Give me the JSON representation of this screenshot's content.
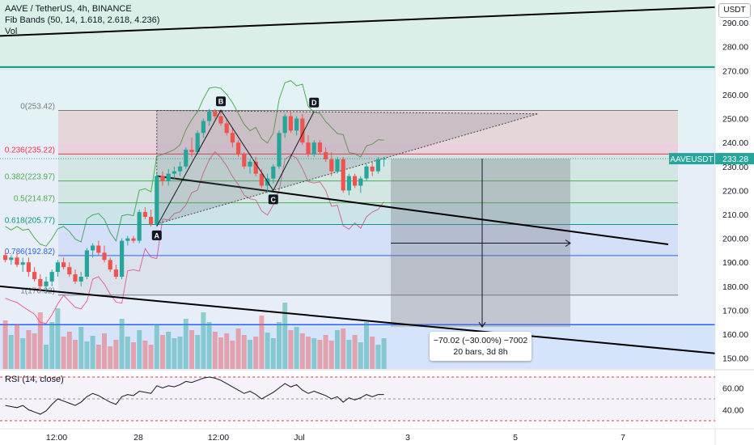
{
  "legend": {
    "symbol": "AAVE / TetherUS, 4h, BINANCE",
    "indicator": "Fib Bands (50, 14, 1.618, 2.618, 4.236)",
    "volume": "Vol"
  },
  "rsi_label": "RSI (14, close)",
  "currency_badge": "USDT",
  "measure": {
    "line1": "−70.02 (−30.00%) −7002",
    "line2": "20 bars, 3d 8h"
  },
  "colors": {
    "up": "#26a69a",
    "down": "#ef5350",
    "price_tag": "#26a69a"
  },
  "chart_data": [
    {
      "type": "candlestick",
      "title": "AAVE / TetherUS, 4h, BINANCE",
      "price_axis": {
        "ticks": [
          150,
          160,
          170,
          180,
          190,
          200,
          210,
          220,
          230,
          240,
          250,
          260,
          270,
          280,
          290
        ],
        "tick_labels": [
          "150.00",
          "160.00",
          "170.00",
          "180.00",
          "190.00",
          "200.00",
          "210.00",
          "220.00",
          "230.00",
          "240.00",
          "250.00",
          "260.00",
          "270.00",
          "280.00",
          "290.00"
        ],
        "ylim": [
          145.5,
          299.5
        ]
      },
      "time_axis": {
        "labels": [
          "12:00",
          "28",
          "12:00",
          "Jul",
          "3",
          "5",
          "7"
        ]
      },
      "last_price": {
        "symbol": "AAVEUSDT",
        "value": "233.28"
      },
      "fib_levels": [
        {
          "label": "0(253.42)",
          "value": 253.42
        },
        {
          "label": "0.236(235.22)",
          "value": 235.22
        },
        {
          "label": "0.382(223.97)",
          "value": 223.97
        },
        {
          "label": "0.5(214.87)",
          "value": 214.87
        },
        {
          "label": "0.618(205.77)",
          "value": 205.77
        },
        {
          "label": "0.786(192.82)",
          "value": 192.82
        },
        {
          "label": "1(176.32)",
          "value": 176.32
        }
      ],
      "pattern_points": [
        {
          "label": "A",
          "bar": 26,
          "price": 205.0
        },
        {
          "label": "B",
          "bar": 37,
          "price": 253.5
        },
        {
          "label": "C",
          "bar": 46,
          "price": 220.0
        },
        {
          "label": "D",
          "bar": 53,
          "price": 253.0
        }
      ],
      "candles": [
        [
          193,
          195,
          190,
          191
        ],
        [
          191,
          193,
          189,
          192
        ],
        [
          192,
          194,
          188,
          189
        ],
        [
          189,
          192,
          186,
          190
        ],
        [
          190,
          192,
          184,
          186
        ],
        [
          186,
          188,
          182,
          183
        ],
        [
          183,
          185,
          178,
          180
        ],
        [
          180,
          184,
          177,
          182
        ],
        [
          182,
          187,
          180,
          186
        ],
        [
          186,
          191,
          184,
          190
        ],
        [
          190,
          192,
          187,
          188
        ],
        [
          188,
          190,
          184,
          185
        ],
        [
          185,
          187,
          181,
          182
        ],
        [
          182,
          186,
          180,
          184
        ],
        [
          184,
          196,
          183,
          195
        ],
        [
          195,
          198,
          192,
          197
        ],
        [
          197,
          199,
          193,
          194
        ],
        [
          194,
          197,
          190,
          191
        ],
        [
          191,
          192,
          186,
          187
        ],
        [
          187,
          189,
          183,
          184
        ],
        [
          184,
          200,
          183,
          199
        ],
        [
          199,
          201,
          197,
          200
        ],
        [
          200,
          201,
          198,
          199
        ],
        [
          199,
          212,
          198,
          211
        ],
        [
          211,
          213,
          208,
          209
        ],
        [
          209,
          212,
          205,
          206
        ],
        [
          206,
          227,
          205,
          226
        ],
        [
          226,
          228,
          222,
          224
        ],
        [
          224,
          229,
          222,
          227
        ],
        [
          227,
          230,
          225,
          228
        ],
        [
          228,
          232,
          226,
          230
        ],
        [
          230,
          238,
          229,
          237
        ],
        [
          237,
          242,
          234,
          236
        ],
        [
          236,
          245,
          235,
          244
        ],
        [
          244,
          250,
          242,
          249
        ],
        [
          249,
          254,
          247,
          253
        ],
        [
          253,
          254,
          250,
          251
        ],
        [
          251,
          253,
          247,
          248
        ],
        [
          248,
          250,
          243,
          244
        ],
        [
          244,
          246,
          238,
          240
        ],
        [
          240,
          241,
          234,
          235
        ],
        [
          235,
          236,
          229,
          230
        ],
        [
          230,
          233,
          227,
          232
        ],
        [
          232,
          234,
          226,
          227
        ],
        [
          227,
          229,
          221,
          222
        ],
        [
          222,
          227,
          219,
          225
        ],
        [
          225,
          231,
          223,
          230
        ],
        [
          230,
          245,
          229,
          244
        ],
        [
          244,
          252,
          242,
          251
        ],
        [
          251,
          253,
          244,
          245
        ],
        [
          245,
          251,
          243,
          250
        ],
        [
          250,
          252,
          239,
          240
        ],
        [
          240,
          243,
          234,
          235
        ],
        [
          235,
          241,
          234,
          240
        ],
        [
          240,
          241,
          235,
          236
        ],
        [
          236,
          238,
          232,
          233
        ],
        [
          233,
          236,
          226,
          228
        ],
        [
          228,
          234,
          227,
          233
        ],
        [
          233,
          234,
          219,
          220
        ],
        [
          220,
          227,
          218,
          226
        ],
        [
          226,
          227,
          221,
          222
        ],
        [
          222,
          226,
          219,
          225
        ],
        [
          225,
          231,
          224,
          230
        ],
        [
          230,
          232,
          226,
          228
        ],
        [
          228,
          234,
          227,
          233
        ],
        [
          233,
          234,
          230,
          233.28
        ]
      ],
      "volume": [
        60,
        42,
        55,
        38,
        48,
        44,
        70,
        30,
        58,
        75,
        40,
        46,
        36,
        52,
        34,
        41,
        30,
        44,
        28,
        36,
        62,
        40,
        33,
        48,
        35,
        30,
        55,
        42,
        46,
        38,
        40,
        62,
        48,
        42,
        70,
        58,
        46,
        39,
        44,
        35,
        50,
        42,
        36,
        40,
        66,
        45,
        38,
        58,
        82,
        48,
        52,
        44,
        40,
        38,
        36,
        42,
        35,
        48,
        50,
        36,
        42,
        33,
        58,
        40,
        30,
        38
      ],
      "rsi": {
        "ticks": [
          40,
          60
        ],
        "tick_labels": [
          "40.00",
          "60.00"
        ],
        "levels": [
          30,
          50,
          70
        ],
        "ylim": [
          30,
          70
        ],
        "values": [
          44,
          43,
          42,
          44,
          40,
          38,
          36,
          39,
          45,
          50,
          48,
          46,
          44,
          47,
          52,
          55,
          53,
          50,
          47,
          45,
          52,
          54,
          53,
          57,
          56,
          55,
          62,
          60,
          62,
          61,
          63,
          66,
          65,
          67,
          69,
          70,
          69,
          67,
          64,
          61,
          58,
          55,
          57,
          54,
          50,
          53,
          56,
          60,
          64,
          61,
          63,
          58,
          55,
          57,
          55,
          53,
          50,
          52,
          47,
          51,
          49,
          51,
          54,
          52,
          54,
          54
        ]
      }
    }
  ]
}
